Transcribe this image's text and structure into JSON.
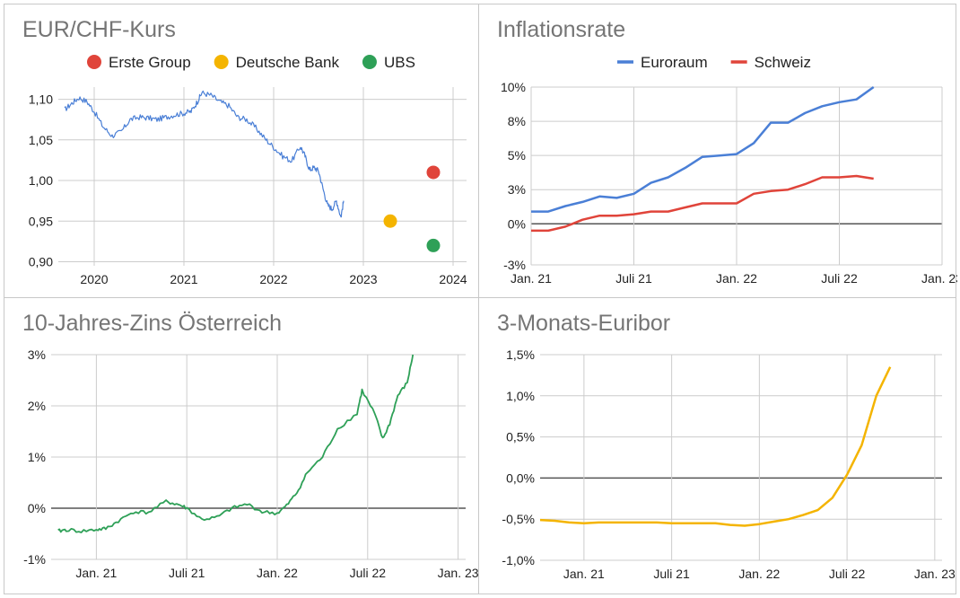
{
  "chart_data": [
    {
      "type": "line",
      "title": "EUR/CHF-Kurs",
      "xlabel": "",
      "ylabel": "",
      "x_ticks": [
        "2020",
        "2021",
        "2022",
        "2023",
        "2024"
      ],
      "y_ticks": [
        "0,90",
        "0,95",
        "1,00",
        "1,05",
        "1,10"
      ],
      "xlim": [
        2019.6,
        2024.15
      ],
      "ylim": [
        0.895,
        1.115
      ],
      "grid": true,
      "legend": "top",
      "series": [
        {
          "name": "EUR/CHF",
          "color": "#4a7fd6",
          "x": [
            2019.67,
            2019.75,
            2019.83,
            2019.92,
            2020.0,
            2020.1,
            2020.2,
            2020.3,
            2020.4,
            2020.5,
            2020.6,
            2020.7,
            2020.8,
            2020.9,
            2021.0,
            2021.08,
            2021.15,
            2021.2,
            2021.3,
            2021.4,
            2021.5,
            2021.6,
            2021.7,
            2021.8,
            2021.9,
            2022.0,
            2022.1,
            2022.2,
            2022.3,
            2022.35,
            2022.4,
            2022.45,
            2022.5,
            2022.55,
            2022.6,
            2022.65,
            2022.7,
            2022.75,
            2022.78
          ],
          "y": [
            1.087,
            1.095,
            1.102,
            1.097,
            1.085,
            1.066,
            1.055,
            1.06,
            1.075,
            1.078,
            1.077,
            1.075,
            1.078,
            1.081,
            1.083,
            1.085,
            1.097,
            1.108,
            1.105,
            1.097,
            1.092,
            1.078,
            1.075,
            1.065,
            1.052,
            1.041,
            1.03,
            1.024,
            1.042,
            1.03,
            1.013,
            1.016,
            1.012,
            0.99,
            0.97,
            0.965,
            0.975,
            0.955,
            0.975
          ]
        },
        {
          "name": "Erste Group",
          "color": "#e0443a",
          "type": "point",
          "x": [
            2023.78
          ],
          "y": [
            1.01
          ]
        },
        {
          "name": "Deutsche Bank",
          "color": "#f4b400",
          "type": "point",
          "x": [
            2023.3
          ],
          "y": [
            0.95
          ]
        },
        {
          "name": "UBS",
          "color": "#2ea057",
          "type": "point",
          "x": [
            2023.78
          ],
          "y": [
            0.92
          ]
        }
      ]
    },
    {
      "type": "line",
      "title": "Inflationsrate",
      "xlabel": "",
      "ylabel": "",
      "x_ticks": [
        "Jan. 21",
        "Juli 21",
        "Jan. 22",
        "Juli 22",
        "Jan. 23"
      ],
      "y_ticks": [
        "-3%",
        "0%",
        "3%",
        "5%",
        "8%",
        "10%"
      ],
      "ylim": [
        -3,
        10
      ],
      "grid": true,
      "legend": "top",
      "series": [
        {
          "name": "Euroraum",
          "color": "#4a7fd6",
          "x": [
            "2021-01",
            "2021-02",
            "2021-03",
            "2021-04",
            "2021-05",
            "2021-06",
            "2021-07",
            "2021-08",
            "2021-09",
            "2021-10",
            "2021-11",
            "2021-12",
            "2022-01",
            "2022-02",
            "2022-03",
            "2022-04",
            "2022-05",
            "2022-06",
            "2022-07",
            "2022-08",
            "2022-09"
          ],
          "y": [
            0.9,
            0.9,
            1.3,
            1.6,
            2.0,
            1.9,
            2.2,
            3.0,
            3.4,
            4.1,
            4.9,
            5.0,
            5.1,
            5.9,
            7.4,
            7.4,
            8.1,
            8.6,
            8.9,
            9.1,
            10.0
          ]
        },
        {
          "name": "Schweiz",
          "color": "#e0443a",
          "x": [
            "2021-01",
            "2021-02",
            "2021-03",
            "2021-04",
            "2021-05",
            "2021-06",
            "2021-07",
            "2021-08",
            "2021-09",
            "2021-10",
            "2021-11",
            "2021-12",
            "2022-01",
            "2022-02",
            "2022-03",
            "2022-04",
            "2022-05",
            "2022-06",
            "2022-07",
            "2022-08",
            "2022-09"
          ],
          "y": [
            -0.5,
            -0.5,
            -0.2,
            0.3,
            0.6,
            0.6,
            0.7,
            0.9,
            0.9,
            1.2,
            1.5,
            1.5,
            1.5,
            2.2,
            2.4,
            2.5,
            2.9,
            3.4,
            3.4,
            3.5,
            3.3
          ]
        }
      ]
    },
    {
      "type": "line",
      "title": "10-Jahres-Zins Österreich",
      "xlabel": "",
      "ylabel": "",
      "x_ticks": [
        "Jan. 21",
        "Juli 21",
        "Jan. 22",
        "Juli 22",
        "Jan. 23"
      ],
      "y_ticks": [
        "-1%",
        "0%",
        "1%",
        "2%",
        "3%"
      ],
      "ylim": [
        -1,
        3
      ],
      "grid": true,
      "legend": "none",
      "series": [
        {
          "name": "",
          "color": "#2ea057",
          "x": [
            "2020-10-15",
            "2020-11-01",
            "2020-12-01",
            "2021-01-01",
            "2021-01-20",
            "2021-02-15",
            "2021-03-15",
            "2021-04-15",
            "2021-05-20",
            "2021-06-15",
            "2021-07-01",
            "2021-08-01",
            "2021-09-01",
            "2021-10-01",
            "2021-11-01",
            "2021-12-01",
            "2022-01-01",
            "2022-01-20",
            "2022-02-10",
            "2022-03-01",
            "2022-04-01",
            "2022-05-01",
            "2022-06-10",
            "2022-06-20",
            "2022-07-15",
            "2022-08-01",
            "2022-08-15",
            "2022-09-01",
            "2022-09-20",
            "2022-10-01"
          ],
          "y": [
            -0.45,
            -0.42,
            -0.45,
            -0.42,
            -0.4,
            -0.25,
            -0.07,
            -0.08,
            0.13,
            0.07,
            0.0,
            -0.22,
            -0.18,
            0.0,
            0.08,
            -0.07,
            -0.1,
            0.05,
            0.3,
            0.7,
            1.0,
            1.55,
            1.85,
            2.3,
            1.85,
            1.35,
            1.65,
            2.2,
            2.45,
            3.0
          ]
        }
      ]
    },
    {
      "type": "line",
      "title": "3-Monats-Euribor",
      "xlabel": "",
      "ylabel": "",
      "x_ticks": [
        "Jan. 21",
        "Juli 21",
        "Jan. 22",
        "Juli 22",
        "Jan. 23"
      ],
      "y_ticks": [
        "-1,0%",
        "-0,5%",
        "0,0%",
        "0,5%",
        "1,0%",
        "1,5%"
      ],
      "ylim": [
        -1,
        1.5
      ],
      "grid": true,
      "legend": "none",
      "series": [
        {
          "name": "",
          "color": "#f4b400",
          "x": [
            "2020-10-01",
            "2020-11-01",
            "2020-12-01",
            "2021-01-01",
            "2021-02-01",
            "2021-03-01",
            "2021-04-01",
            "2021-05-01",
            "2021-06-01",
            "2021-07-01",
            "2021-08-01",
            "2021-09-01",
            "2021-10-01",
            "2021-11-01",
            "2021-12-01",
            "2022-01-01",
            "2022-02-01",
            "2022-03-01",
            "2022-04-01",
            "2022-05-01",
            "2022-06-01",
            "2022-07-01",
            "2022-08-01",
            "2022-09-01",
            "2022-09-30"
          ],
          "y": [
            -0.51,
            -0.52,
            -0.54,
            -0.55,
            -0.54,
            -0.54,
            -0.54,
            -0.54,
            -0.54,
            -0.55,
            -0.55,
            -0.55,
            -0.55,
            -0.57,
            -0.58,
            -0.56,
            -0.53,
            -0.5,
            -0.45,
            -0.39,
            -0.24,
            0.04,
            0.4,
            1.0,
            1.35
          ]
        }
      ]
    }
  ]
}
